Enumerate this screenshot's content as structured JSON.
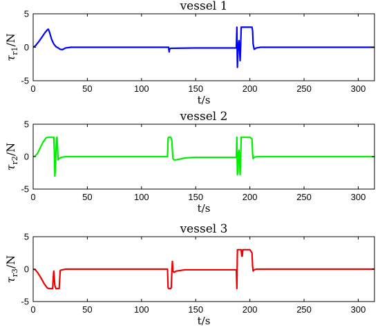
{
  "chart_data": [
    {
      "type": "line",
      "title": "vessel 1",
      "xlabel": "t/s",
      "ylabel": {
        "symbol": "τ",
        "subscript": "r1",
        "unit": "/N"
      },
      "xlim": [
        0,
        315
      ],
      "ylim": [
        -5,
        5
      ],
      "xticks": [
        0,
        50,
        100,
        150,
        200,
        250,
        300
      ],
      "yticks": [
        5,
        0,
        -5
      ],
      "series": [
        {
          "color": "#0000ff",
          "x": [
            0,
            2,
            5,
            8,
            11,
            13,
            14,
            15,
            17,
            19,
            21,
            23,
            25,
            27,
            30,
            35,
            60,
            100,
            125,
            125.5,
            126,
            126.5,
            127,
            150,
            187.5,
            188,
            188.5,
            189,
            189.5,
            190,
            190.5,
            191,
            191.5,
            192,
            192.5,
            193,
            193.5,
            194,
            200,
            202,
            202.5,
            203,
            204,
            206,
            210,
            250,
            315
          ],
          "y": [
            0,
            0.2,
            0.8,
            1.5,
            2.2,
            2.6,
            2.7,
            2.3,
            1.2,
            0.5,
            0.1,
            -0.1,
            -0.3,
            -0.35,
            -0.1,
            0,
            0,
            0,
            0,
            -0.7,
            -0.2,
            -0.2,
            -0.15,
            -0.1,
            -0.1,
            3.0,
            -3.0,
            -0.5,
            0.5,
            1.0,
            -0.5,
            -2.0,
            0.2,
            3.0,
            3.0,
            3.0,
            3.0,
            3.0,
            3.0,
            3.0,
            2.5,
            0.5,
            -0.3,
            -0.1,
            0,
            0,
            0
          ]
        }
      ]
    },
    {
      "type": "line",
      "title": "vessel 2",
      "xlabel": "t/s",
      "ylabel": {
        "symbol": "τ",
        "subscript": "r2",
        "unit": "/N"
      },
      "xlim": [
        0,
        315
      ],
      "ylim": [
        -5,
        5
      ],
      "xticks": [
        0,
        50,
        100,
        150,
        200,
        250,
        300
      ],
      "yticks": [
        5,
        0,
        -5
      ],
      "series": [
        {
          "color": "#00ee00",
          "x": [
            0,
            2,
            4,
            6,
            9,
            12,
            14,
            15,
            18,
            19,
            19.5,
            20,
            20.5,
            21,
            21.5,
            22,
            22.5,
            23,
            23.5,
            24,
            26,
            30,
            50,
            100,
            124,
            124.5,
            125,
            126,
            127,
            128,
            128.5,
            129,
            130,
            132,
            140,
            150,
            187.5,
            188,
            188.5,
            189,
            189.5,
            190,
            190.5,
            191,
            191.5,
            192,
            192.5,
            193,
            200,
            202,
            202.5,
            203,
            204,
            206,
            210,
            250,
            315
          ],
          "y": [
            0,
            0.1,
            0.5,
            1.2,
            2.2,
            2.9,
            3.0,
            3.0,
            3.0,
            3.0,
            1.0,
            -3.0,
            -2.0,
            0.5,
            2.8,
            3.0,
            1.5,
            -0.5,
            -0.4,
            -0.3,
            -0.1,
            0,
            0,
            0,
            0,
            2.8,
            3.0,
            3.0,
            3.0,
            2.5,
            1.0,
            -0.3,
            -0.5,
            -0.5,
            -0.2,
            -0.1,
            -0.1,
            3.0,
            -2.8,
            -2.0,
            0.5,
            1.0,
            -0.5,
            -2.8,
            -0.5,
            3.0,
            3.0,
            3.0,
            3.0,
            2.7,
            0.5,
            -0.3,
            -0.1,
            0,
            0,
            0,
            0
          ]
        }
      ]
    },
    {
      "type": "line",
      "title": "vessel 3",
      "xlabel": "t/s",
      "ylabel": {
        "symbol": "τ",
        "subscript": "r3",
        "unit": "/N"
      },
      "xlim": [
        0,
        315
      ],
      "ylim": [
        -5,
        5
      ],
      "xticks": [
        0,
        50,
        100,
        150,
        200,
        250,
        300
      ],
      "yticks": [
        5,
        0,
        -5
      ],
      "series": [
        {
          "color": "#ee0000",
          "x": [
            0,
            2,
            4,
            7,
            10,
            13,
            15,
            17,
            18,
            18.5,
            19,
            20,
            21,
            21.5,
            22,
            23,
            24,
            24.5,
            25,
            27,
            30,
            50,
            100,
            124,
            124.5,
            125,
            126,
            127,
            127.5,
            128,
            128.5,
            129,
            130,
            132,
            140,
            150,
            187.5,
            188,
            188.5,
            189,
            190,
            192,
            192.5,
            193,
            193.5,
            194,
            195,
            200,
            202,
            202.5,
            203,
            204,
            206,
            210,
            250,
            315
          ],
          "y": [
            0,
            -0.1,
            -0.5,
            -1.3,
            -2.2,
            -2.9,
            -3.0,
            -3.0,
            -3.0,
            -1.5,
            -0.3,
            -2.5,
            -3.0,
            -3.0,
            -3.0,
            -3.0,
            -3.0,
            -1.5,
            -0.2,
            -0.1,
            0,
            0,
            0,
            0,
            -2.8,
            -3.0,
            -3.0,
            -3.0,
            -2.8,
            -0.3,
            1.2,
            -0.3,
            -0.5,
            -0.3,
            -0.1,
            -0.1,
            -0.1,
            -3.0,
            3.0,
            3.0,
            3.0,
            3.0,
            2.0,
            2.0,
            3.0,
            3.0,
            3.0,
            3.0,
            2.5,
            0.5,
            -0.3,
            -0.1,
            0,
            0,
            0,
            0
          ]
        }
      ]
    }
  ]
}
